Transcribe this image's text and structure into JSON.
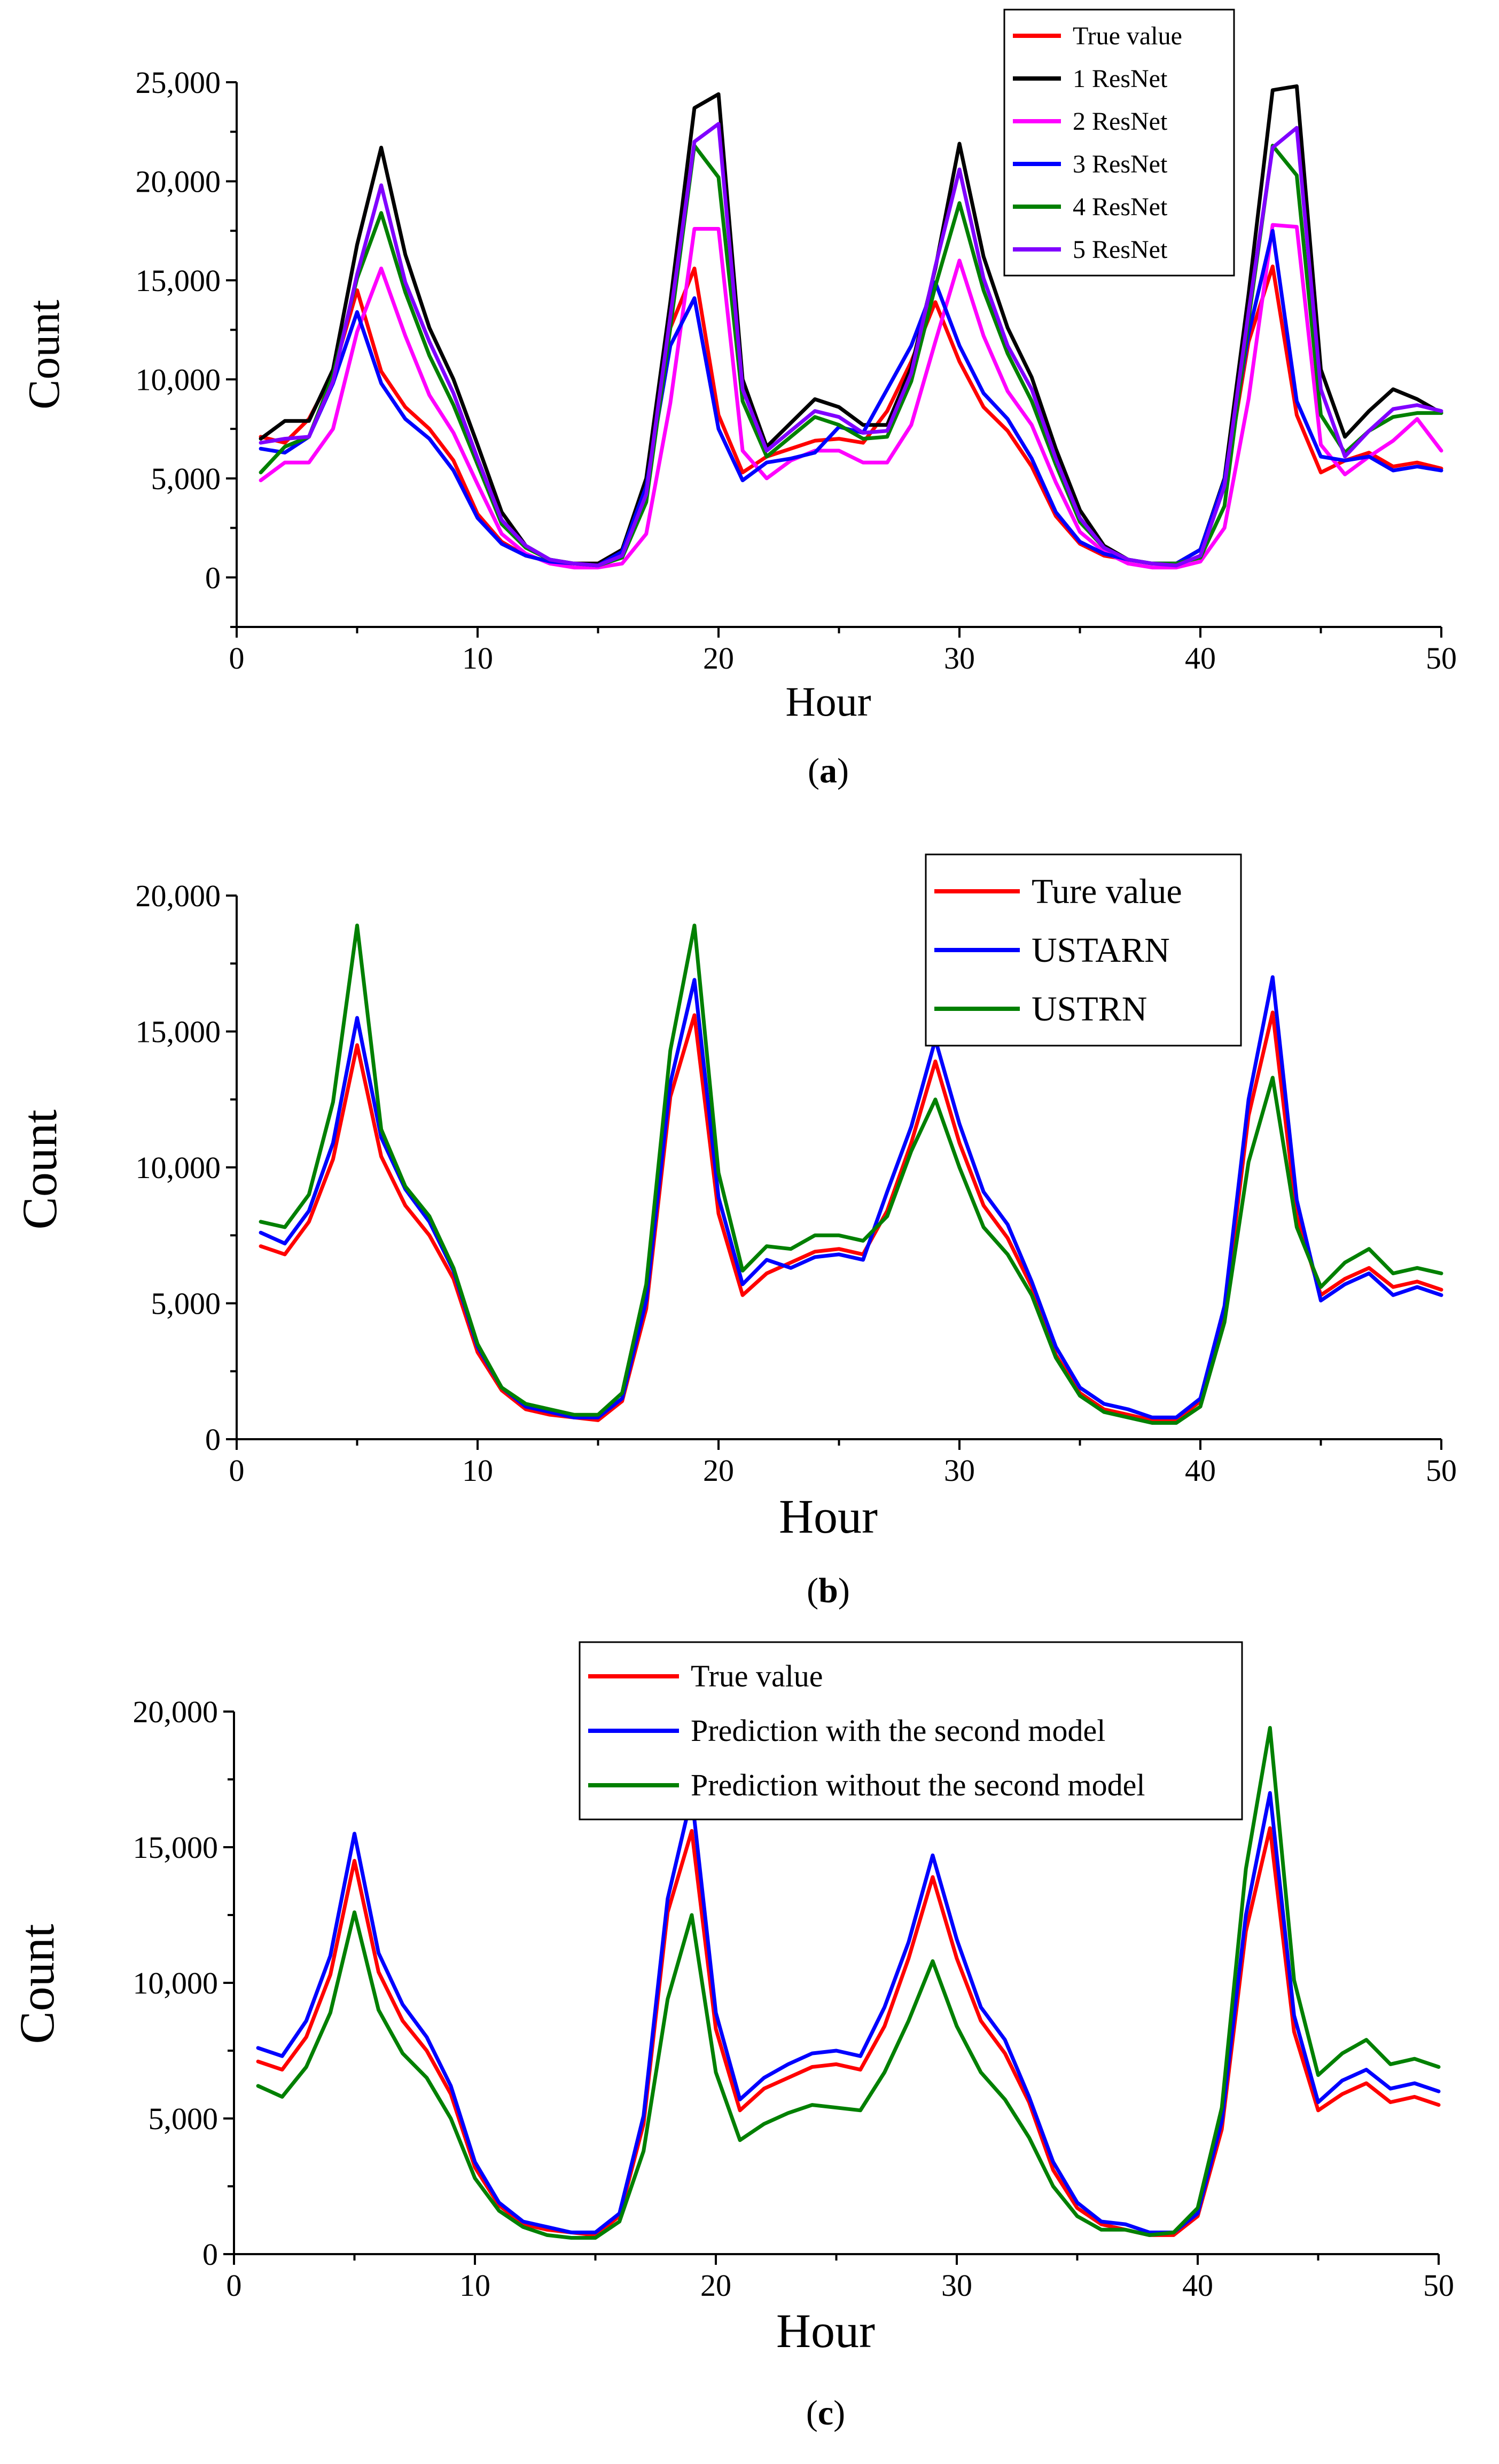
{
  "chart_data": [
    {
      "type": "line",
      "title": "",
      "caption_letter": "a",
      "xlabel": "Hour",
      "ylabel": "Count",
      "xlim": [
        0,
        50
      ],
      "ylim": [
        -2500,
        25000
      ],
      "xticks": [
        0,
        10,
        20,
        30,
        40,
        50
      ],
      "xtick_labels": [
        "0",
        "10",
        "20",
        "30",
        "40",
        "50"
      ],
      "yticks": [
        0,
        5000,
        10000,
        15000,
        20000,
        25000
      ],
      "ytick_labels": [
        "0",
        "5,000",
        "10,000",
        "15,000",
        "20,000",
        "25,000"
      ],
      "legend_position": "top-right",
      "x": [
        1,
        2,
        3,
        4,
        5,
        6,
        7,
        8,
        9,
        10,
        11,
        12,
        13,
        14,
        15,
        16,
        17,
        18,
        19,
        20,
        21,
        22,
        23,
        24,
        25,
        26,
        27,
        28,
        29,
        30,
        31,
        32,
        33,
        34,
        35,
        36,
        37,
        38,
        39,
        40,
        41,
        42,
        43,
        44,
        45,
        46,
        47,
        48,
        49,
        50
      ],
      "series": [
        {
          "name": "True value",
          "color": "#ff0000",
          "values": [
            7100,
            6800,
            8000,
            10300,
            14500,
            10400,
            8600,
            7500,
            5900,
            3200,
            1800,
            1100,
            800,
            700,
            700,
            1400,
            4800,
            12600,
            15600,
            8200,
            5300,
            6100,
            6500,
            6900,
            7000,
            6800,
            8400,
            10900,
            13900,
            10900,
            8600,
            7400,
            5600,
            3100,
            1700,
            1100,
            900,
            700,
            700,
            1400,
            4600,
            11900,
            15700,
            8200,
            5300,
            5900,
            6300,
            5600,
            5800,
            5500
          ]
        },
        {
          "name": "1 ResNet",
          "color": "#000000",
          "values": [
            7000,
            7900,
            7900,
            10500,
            16800,
            21700,
            16300,
            12600,
            10000,
            6700,
            3300,
            1600,
            900,
            700,
            700,
            1400,
            5000,
            13900,
            23700,
            24400,
            10000,
            6600,
            7800,
            9000,
            8600,
            7700,
            7700,
            10600,
            15600,
            21900,
            16200,
            12600,
            10100,
            6500,
            3400,
            1600,
            900,
            700,
            700,
            1400,
            5000,
            14300,
            24600,
            24800,
            10500,
            7100,
            8400,
            9500,
            9000,
            8300
          ]
        },
        {
          "name": "2 ResNet",
          "color": "#ff00ff",
          "values": [
            4900,
            5800,
            5800,
            7500,
            12400,
            15600,
            12200,
            9200,
            7300,
            4700,
            2200,
            1200,
            700,
            500,
            500,
            700,
            2200,
            8800,
            17600,
            17600,
            6400,
            5000,
            5900,
            6400,
            6400,
            5800,
            5800,
            7700,
            11900,
            16000,
            12200,
            9400,
            7700,
            4800,
            2300,
            1300,
            700,
            500,
            500,
            800,
            2500,
            9000,
            17800,
            17700,
            6700,
            5200,
            6100,
            6900,
            8000,
            6400
          ]
        },
        {
          "name": "3 ResNet",
          "color": "#0000ff",
          "values": [
            6500,
            6300,
            7100,
            9800,
            13400,
            9800,
            8000,
            7000,
            5400,
            3000,
            1700,
            1100,
            800,
            700,
            600,
            1300,
            4600,
            11700,
            14100,
            7500,
            4900,
            5800,
            6000,
            6300,
            7600,
            7300,
            9500,
            11700,
            14900,
            11700,
            9300,
            8000,
            6000,
            3300,
            1800,
            1200,
            900,
            700,
            700,
            1400,
            4900,
            12300,
            17500,
            8900,
            6100,
            5900,
            6100,
            5400,
            5600,
            5400
          ]
        },
        {
          "name": "4 ResNet",
          "color": "#008000",
          "values": [
            5300,
            6600,
            7100,
            10200,
            15100,
            18400,
            14400,
            11200,
            8700,
            5700,
            2700,
            1500,
            900,
            700,
            600,
            1000,
            3800,
            12600,
            21800,
            20200,
            8900,
            6100,
            7100,
            8100,
            7700,
            7000,
            7100,
            9900,
            14700,
            18900,
            14500,
            11300,
            8900,
            5700,
            2800,
            1500,
            900,
            700,
            700,
            1000,
            3600,
            13000,
            21800,
            20300,
            8200,
            6300,
            7400,
            8100,
            8300,
            8300
          ]
        },
        {
          "name": "5 ResNet",
          "color": "#8000ff",
          "values": [
            6800,
            7000,
            7100,
            9900,
            15300,
            19800,
            14900,
            11900,
            9300,
            6000,
            2900,
            1600,
            900,
            700,
            600,
            1100,
            4200,
            13200,
            22000,
            22900,
            9500,
            6400,
            7400,
            8400,
            8100,
            7300,
            7400,
            10300,
            15700,
            20600,
            15100,
            11700,
            9500,
            6000,
            3000,
            1500,
            900,
            700,
            600,
            1100,
            4600,
            13400,
            21700,
            22700,
            9500,
            6100,
            7400,
            8500,
            8700,
            8400
          ]
        }
      ]
    },
    {
      "type": "line",
      "title": "",
      "caption_letter": "b",
      "xlabel": "Hour",
      "ylabel": "Count",
      "xlim": [
        0,
        50
      ],
      "ylim": [
        0,
        20000
      ],
      "xticks": [
        0,
        10,
        20,
        30,
        40,
        50
      ],
      "xtick_labels": [
        "0",
        "10",
        "20",
        "30",
        "40",
        "50"
      ],
      "yticks": [
        0,
        5000,
        10000,
        15000,
        20000
      ],
      "ytick_labels": [
        "0",
        "5,000",
        "10,000",
        "15,000",
        "20,000"
      ],
      "legend_position": "top-right",
      "x": [
        1,
        2,
        3,
        4,
        5,
        6,
        7,
        8,
        9,
        10,
        11,
        12,
        13,
        14,
        15,
        16,
        17,
        18,
        19,
        20,
        21,
        22,
        23,
        24,
        25,
        26,
        27,
        28,
        29,
        30,
        31,
        32,
        33,
        34,
        35,
        36,
        37,
        38,
        39,
        40,
        41,
        42,
        43,
        44,
        45,
        46,
        47,
        48,
        49,
        50
      ],
      "series": [
        {
          "name": "Ture value",
          "color": "#ff0000",
          "values": [
            7100,
            6800,
            8000,
            10300,
            14500,
            10400,
            8600,
            7500,
            5900,
            3200,
            1800,
            1100,
            900,
            800,
            700,
            1400,
            4800,
            12600,
            15600,
            8300,
            5300,
            6100,
            6500,
            6900,
            7000,
            6800,
            8400,
            10900,
            13900,
            10900,
            8600,
            7400,
            5600,
            3100,
            1700,
            1100,
            900,
            700,
            700,
            1400,
            4600,
            11900,
            15700,
            8200,
            5300,
            5900,
            6300,
            5600,
            5800,
            5500
          ]
        },
        {
          "name": "USTARN",
          "color": "#0000ff",
          "values": [
            7600,
            7200,
            8400,
            10900,
            15500,
            11100,
            9200,
            8000,
            6200,
            3400,
            1900,
            1200,
            1000,
            800,
            800,
            1500,
            5100,
            13100,
            16900,
            8900,
            5700,
            6600,
            6300,
            6700,
            6800,
            6600,
            9100,
            11500,
            14700,
            11600,
            9100,
            7900,
            5800,
            3400,
            1900,
            1300,
            1100,
            800,
            800,
            1500,
            4900,
            12500,
            17000,
            8800,
            5100,
            5700,
            6100,
            5300,
            5600,
            5300
          ]
        },
        {
          "name": "USTRN",
          "color": "#008000",
          "values": [
            8000,
            7800,
            9000,
            12400,
            18900,
            11400,
            9300,
            8200,
            6300,
            3500,
            1900,
            1300,
            1100,
            900,
            900,
            1700,
            5700,
            14300,
            18900,
            9800,
            6200,
            7100,
            7000,
            7500,
            7500,
            7300,
            8200,
            10600,
            12500,
            10000,
            7800,
            6800,
            5300,
            3000,
            1600,
            1000,
            800,
            600,
            600,
            1200,
            4300,
            10200,
            13300,
            7800,
            5600,
            6500,
            7000,
            6100,
            6300,
            6100
          ]
        }
      ]
    },
    {
      "type": "line",
      "title": "",
      "caption_letter": "c",
      "xlabel": "Hour",
      "ylabel": "Count",
      "xlim": [
        0,
        50
      ],
      "ylim": [
        0,
        20000
      ],
      "xticks": [
        0,
        10,
        20,
        30,
        40,
        50
      ],
      "xtick_labels": [
        "0",
        "10",
        "20",
        "30",
        "40",
        "50"
      ],
      "yticks": [
        0,
        5000,
        10000,
        15000,
        20000
      ],
      "ytick_labels": [
        "0",
        "5,000",
        "10,000",
        "15,000",
        "20,000"
      ],
      "legend_position": "top-right",
      "x": [
        1,
        2,
        3,
        4,
        5,
        6,
        7,
        8,
        9,
        10,
        11,
        12,
        13,
        14,
        15,
        16,
        17,
        18,
        19,
        20,
        21,
        22,
        23,
        24,
        25,
        26,
        27,
        28,
        29,
        30,
        31,
        32,
        33,
        34,
        35,
        36,
        37,
        38,
        39,
        40,
        41,
        42,
        43,
        44,
        45,
        46,
        47,
        48,
        49,
        50
      ],
      "series": [
        {
          "name": "True value",
          "color": "#ff0000",
          "values": [
            7100,
            6800,
            8000,
            10300,
            14500,
            10400,
            8600,
            7500,
            5900,
            3200,
            1800,
            1100,
            900,
            800,
            700,
            1400,
            4800,
            12600,
            15600,
            8300,
            5300,
            6100,
            6500,
            6900,
            7000,
            6800,
            8400,
            10900,
            13900,
            10900,
            8600,
            7400,
            5600,
            3100,
            1700,
            1100,
            900,
            700,
            700,
            1400,
            4600,
            11900,
            15700,
            8200,
            5300,
            5900,
            6300,
            5600,
            5800,
            5500
          ]
        },
        {
          "name": "Prediction with the second model",
          "color": "#0000ff",
          "values": [
            7600,
            7300,
            8600,
            11000,
            15500,
            11100,
            9200,
            8000,
            6200,
            3400,
            1900,
            1200,
            1000,
            800,
            800,
            1500,
            5100,
            13100,
            16900,
            8900,
            5700,
            6500,
            7000,
            7400,
            7500,
            7300,
            9100,
            11500,
            14700,
            11600,
            9100,
            7900,
            5800,
            3400,
            1900,
            1200,
            1100,
            800,
            800,
            1500,
            4900,
            12500,
            17000,
            8800,
            5600,
            6400,
            6800,
            6100,
            6300,
            6000
          ]
        },
        {
          "name": "Prediction without the second model",
          "color": "#008000",
          "values": [
            6200,
            5800,
            6900,
            8900,
            12600,
            9000,
            7400,
            6500,
            5000,
            2800,
            1600,
            1000,
            700,
            600,
            600,
            1200,
            3800,
            9400,
            12500,
            6700,
            4200,
            4800,
            5200,
            5500,
            5400,
            5300,
            6700,
            8600,
            10800,
            8400,
            6700,
            5700,
            4300,
            2500,
            1400,
            900,
            900,
            700,
            800,
            1700,
            5400,
            14200,
            19400,
            10100,
            6600,
            7400,
            7900,
            7000,
            7200,
            6900
          ]
        }
      ]
    }
  ]
}
